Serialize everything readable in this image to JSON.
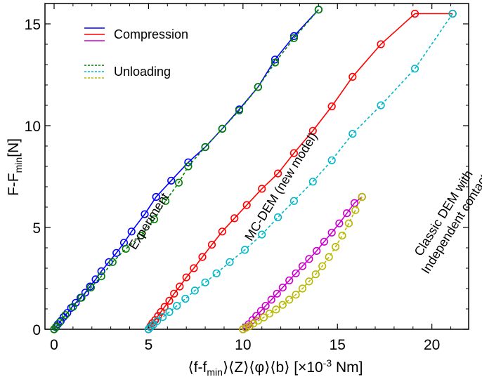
{
  "chart_data": {
    "type": "line",
    "xlabel": {
      "pre": "⟨f-f",
      "sub": "min",
      "mid": "⟩⟨Z⟩⟨φ⟩⟨b⟩  [×10",
      "sup": "-3",
      "post": " Nm]"
    },
    "ylabel": {
      "pre": "F-F",
      "sub": "min",
      "post": "[N]"
    },
    "xlim": [
      0,
      21.5
    ],
    "ylim": [
      0,
      16
    ],
    "xticks": [
      0,
      5,
      10,
      15,
      20
    ],
    "yticks": [
      0,
      5,
      10,
      15
    ],
    "grid": false,
    "legend": {
      "placement": "top-left",
      "items": [
        {
          "label": "Compression",
          "colors": [
            "#0000ff",
            "#ff0000",
            "#cc00cc"
          ],
          "dash": "solid"
        },
        {
          "label": "Unloading",
          "colors": [
            "#008000",
            "#00b8c8",
            "#b8b800"
          ],
          "dash": "dashed"
        }
      ]
    },
    "annotations": [
      {
        "lines": [
          "Experiment"
        ],
        "x": 5.2,
        "y": 5.2
      },
      {
        "lines": [
          "MC-DEM (new model)"
        ],
        "x": 12.2,
        "y": 6.9
      },
      {
        "lines": [
          "Classic DEM with",
          "Independent contacts"
        ],
        "x": 20.8,
        "y": 5.6
      }
    ],
    "series": [
      {
        "name": "Experiment compression",
        "color": "#0000ff",
        "dash": "solid",
        "x": [
          0,
          0.1,
          0.2,
          0.35,
          0.5,
          0.7,
          0.9,
          1.15,
          1.4,
          1.65,
          1.9,
          2.2,
          2.5,
          2.9,
          3.3,
          3.7,
          4.1,
          4.8,
          5.4,
          6.2,
          7.1,
          8.0,
          8.9,
          9.8,
          10.8,
          11.7,
          12.7,
          14.0
        ],
        "y": [
          0,
          0.1,
          0.25,
          0.4,
          0.6,
          0.8,
          1.05,
          1.3,
          1.55,
          1.8,
          2.1,
          2.45,
          2.85,
          3.3,
          3.75,
          4.25,
          4.8,
          5.65,
          6.5,
          7.3,
          8.2,
          8.95,
          9.85,
          10.8,
          11.9,
          13.25,
          14.4,
          15.7
        ]
      },
      {
        "name": "Experiment unloading",
        "color": "#008000",
        "dash": "dashed",
        "x": [
          14.0,
          12.7,
          11.7,
          10.8,
          9.8,
          8.9,
          8.0,
          7.1,
          6.6,
          5.9,
          5.3,
          4.6,
          3.8,
          3.1,
          2.5,
          1.95,
          1.45,
          1.0,
          0.6,
          0.3,
          0.1,
          0
        ],
        "y": [
          15.7,
          14.3,
          13.1,
          11.9,
          10.75,
          9.85,
          8.95,
          8.0,
          7.2,
          6.3,
          5.4,
          4.6,
          3.95,
          3.3,
          2.6,
          2.05,
          1.55,
          1.1,
          0.7,
          0.35,
          0.12,
          0
        ]
      },
      {
        "name": "MC-DEM compression",
        "color": "#ff0000",
        "dash": "solid",
        "x": [
          5.0,
          5.1,
          5.2,
          5.35,
          5.5,
          5.65,
          5.85,
          6.1,
          6.35,
          6.65,
          7.0,
          7.4,
          7.85,
          8.35,
          8.9,
          9.55,
          10.2,
          11.0,
          11.85,
          12.7,
          13.7,
          14.7,
          15.8,
          17.3,
          19.1,
          21.1
        ],
        "y": [
          0,
          0.15,
          0.3,
          0.45,
          0.65,
          0.85,
          1.1,
          1.4,
          1.75,
          2.1,
          2.55,
          3.0,
          3.55,
          4.15,
          4.8,
          5.45,
          6.1,
          6.9,
          7.65,
          8.65,
          9.75,
          10.95,
          12.4,
          14.0,
          15.5,
          15.5
        ]
      },
      {
        "name": "MC-DEM unloading",
        "color": "#00b8c8",
        "dash": "dashed",
        "x": [
          21.1,
          19.1,
          17.3,
          15.8,
          14.7,
          13.7,
          12.7,
          11.85,
          11.0,
          10.1,
          9.3,
          8.6,
          8.0,
          7.45,
          6.95,
          6.5,
          6.1,
          5.75,
          5.45,
          5.25,
          5.1,
          5.0
        ],
        "y": [
          15.5,
          12.8,
          11.0,
          9.6,
          8.3,
          7.25,
          6.3,
          5.5,
          4.65,
          3.9,
          3.3,
          2.75,
          2.3,
          1.9,
          1.5,
          1.15,
          0.85,
          0.6,
          0.4,
          0.22,
          0.1,
          0
        ]
      },
      {
        "name": "Classic DEM compression",
        "color": "#cc00cc",
        "dash": "solid",
        "x": [
          10.0,
          10.15,
          10.3,
          10.5,
          10.7,
          10.95,
          11.2,
          11.5,
          11.8,
          12.1,
          12.45,
          12.8,
          13.15,
          13.5,
          13.9,
          14.3,
          14.7,
          15.1,
          15.5,
          15.9,
          16.3
        ],
        "y": [
          0,
          0.1,
          0.25,
          0.45,
          0.65,
          0.9,
          1.15,
          1.45,
          1.75,
          2.05,
          2.4,
          2.75,
          3.1,
          3.45,
          3.85,
          4.3,
          4.75,
          5.2,
          5.7,
          6.2,
          6.5
        ]
      },
      {
        "name": "Classic DEM unloading",
        "color": "#b8b800",
        "dash": "dashed",
        "x": [
          16.3,
          15.95,
          15.6,
          15.25,
          14.9,
          14.55,
          14.2,
          13.85,
          13.5,
          13.15,
          12.8,
          12.45,
          12.1,
          11.75,
          11.4,
          11.1,
          10.8,
          10.55,
          10.35,
          10.15,
          10.0
        ],
        "y": [
          6.5,
          5.85,
          5.2,
          4.6,
          4.05,
          3.55,
          3.1,
          2.7,
          2.35,
          2.0,
          1.7,
          1.45,
          1.2,
          0.97,
          0.77,
          0.58,
          0.42,
          0.28,
          0.16,
          0.07,
          0
        ]
      }
    ]
  }
}
